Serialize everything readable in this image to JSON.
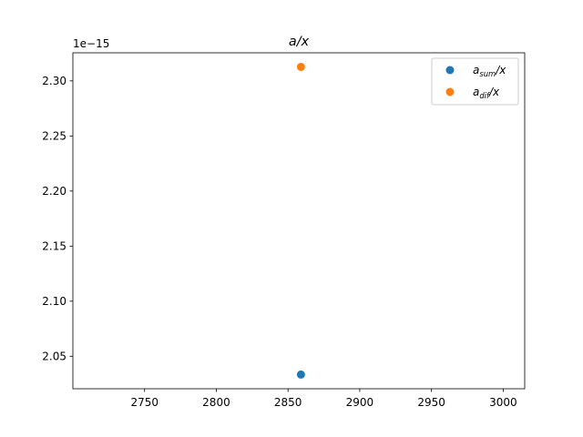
{
  "chart_data": {
    "type": "scatter",
    "title": {
      "base": "a",
      "rest": "/x"
    },
    "xlabel": "",
    "ylabel": "",
    "offset_label": "1e−15",
    "xlim": [
      2700,
      3015
    ],
    "ylim": [
      2.0205,
      2.3255
    ],
    "xticks": [
      2750,
      2800,
      2850,
      2900,
      2950,
      3000
    ],
    "xtick_labels": [
      "2750",
      "2800",
      "2850",
      "2900",
      "2950",
      "3000"
    ],
    "yticks": [
      2.05,
      2.1,
      2.15,
      2.2,
      2.25,
      2.3
    ],
    "ytick_labels": [
      "2.05",
      "2.10",
      "2.15",
      "2.20",
      "2.25",
      "2.30"
    ],
    "grid": false,
    "legend": "top-right",
    "series": [
      {
        "name": {
          "base": "a",
          "sub": "sum",
          "rest": "/x"
        },
        "color": "#1f77b4",
        "points": [
          {
            "x": 2859,
            "y": 2.0334
          }
        ]
      },
      {
        "name": {
          "base": "a",
          "sub": "dif",
          "rest": "/x"
        },
        "color": "#ff7f0e",
        "points": [
          {
            "x": 2859,
            "y": 2.3127
          }
        ]
      }
    ]
  }
}
